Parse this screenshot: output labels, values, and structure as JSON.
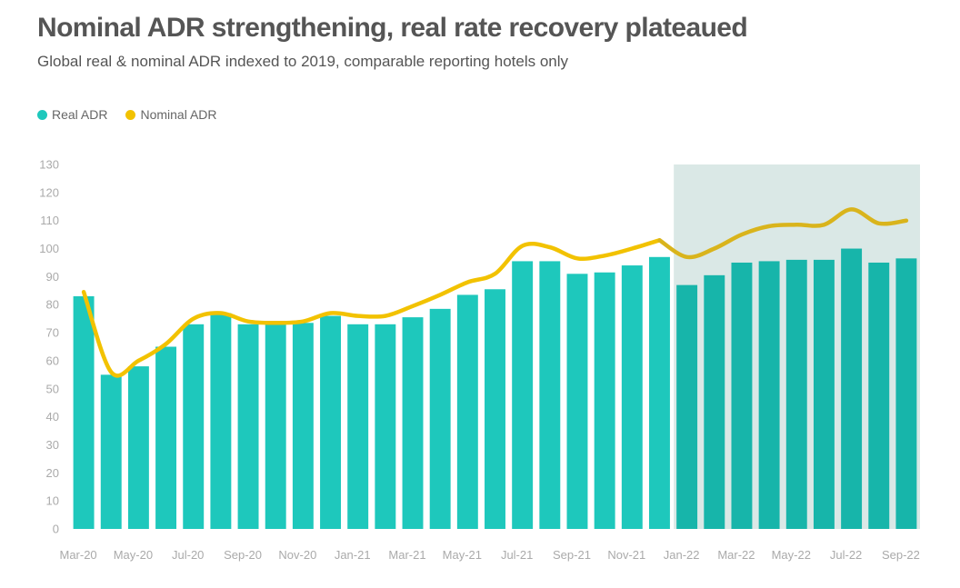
{
  "header": {
    "title": "Nominal ADR strengthening, real rate recovery plateaued",
    "subtitle": "Global real & nominal ADR indexed to 2019, comparable reporting hotels only"
  },
  "colors": {
    "real": "#1ec8bc",
    "real_highlight": "#17b5aa",
    "nominal": "#f2c200",
    "nominal_highlight": "#d9b41c",
    "highlight_band": "#dae8e6"
  },
  "chart_data": {
    "type": "bar",
    "categories": [
      "Mar-20",
      "Apr-20",
      "May-20",
      "Jun-20",
      "Jul-20",
      "Aug-20",
      "Sep-20",
      "Oct-20",
      "Nov-20",
      "Dec-20",
      "Jan-21",
      "Feb-21",
      "Mar-21",
      "Apr-21",
      "May-21",
      "Jun-21",
      "Jul-21",
      "Aug-21",
      "Sep-21",
      "Oct-21",
      "Nov-21",
      "Dec-21",
      "Jan-22",
      "Feb-22",
      "Mar-22",
      "Apr-22",
      "May-22",
      "Jun-22",
      "Jul-22",
      "Aug-22",
      "Sep-22"
    ],
    "tick_labels": [
      "Mar-20",
      "May-20",
      "Jul-20",
      "Sep-20",
      "Nov-20",
      "Jan-21",
      "Mar-21",
      "May-21",
      "Jul-21",
      "Sep-21",
      "Nov-21",
      "Jan-22",
      "Mar-22",
      "May-22",
      "Jul-22",
      "Sep-22"
    ],
    "yticks": [
      "130",
      "120",
      "110",
      "100",
      "90",
      "80",
      "70",
      "60",
      "50",
      "40",
      "30",
      "20",
      "10",
      "0"
    ],
    "ylim": [
      0,
      130
    ],
    "legend_position": "top-left",
    "highlight_range": [
      "Jan-22",
      "Sep-22"
    ],
    "series": [
      {
        "name": "Real ADR",
        "type": "bar",
        "values": [
          83,
          55,
          58,
          65,
          73,
          77,
          73,
          73,
          73.5,
          76,
          73,
          73,
          75.5,
          78.5,
          83.5,
          85.5,
          95.5,
          95.5,
          91,
          91.5,
          94,
          97,
          87,
          90.5,
          95,
          95.5,
          96,
          96,
          100,
          95,
          96.5
        ]
      },
      {
        "name": "Nominal ADR",
        "type": "line",
        "values": [
          84.5,
          56,
          60,
          66,
          75,
          77,
          74,
          73.5,
          74,
          77,
          76,
          76,
          79.5,
          83.5,
          88,
          91,
          101,
          100.5,
          96.5,
          97.5,
          100,
          103,
          97,
          100,
          105,
          108,
          108.5,
          108.5,
          114,
          109,
          110
        ]
      }
    ]
  }
}
